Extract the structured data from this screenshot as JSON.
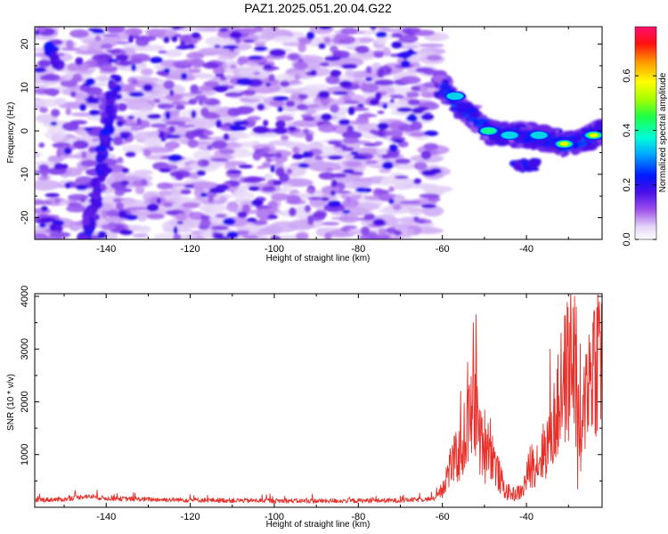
{
  "title": "PAZ1.2025.051.20.04.G22",
  "chart_data": [
    {
      "type": "heatmap",
      "xlabel": "Height of straight line (km)",
      "ylabel": "Frequency (Hz)",
      "xlim": [
        -157,
        -22
      ],
      "ylim": [
        -25,
        24
      ],
      "x_ticks": [
        -140,
        -120,
        -100,
        -80,
        -60,
        -40
      ],
      "y_ticks": [
        -20,
        -10,
        0,
        10,
        20
      ],
      "colorbar": {
        "label": "Normalized spectral amplitude",
        "range": [
          0,
          0.78
        ],
        "ticks": [
          0.0,
          0.2,
          0.4,
          0.6
        ],
        "tick_labels": [
          "0.0",
          "0.2",
          "0.4",
          "0.6"
        ]
      },
      "noise_region_x": [
        -157,
        -61
      ],
      "signal_track": [
        {
          "x": -61,
          "f": 11
        },
        {
          "x": -58,
          "f": 8
        },
        {
          "x": -55,
          "f": 5
        },
        {
          "x": -52,
          "f": 3
        },
        {
          "x": -49,
          "f": 0
        },
        {
          "x": -45,
          "f": -1
        },
        {
          "x": -40,
          "f": -1
        },
        {
          "x": -35,
          "f": -2
        },
        {
          "x": -31,
          "f": -3
        },
        {
          "x": -27,
          "f": -2
        },
        {
          "x": -24,
          "f": -1
        },
        {
          "x": -22,
          "f": 0
        }
      ],
      "peaks": [
        {
          "x": -57,
          "f": 8,
          "amp": 0.5
        },
        {
          "x": -49,
          "f": 0,
          "amp": 0.55
        },
        {
          "x": -44,
          "f": -1,
          "amp": 0.5
        },
        {
          "x": -37,
          "f": -1,
          "amp": 0.5
        },
        {
          "x": -31,
          "f": -3,
          "amp": 0.72
        },
        {
          "x": -24,
          "f": -1,
          "amp": 0.7
        }
      ]
    },
    {
      "type": "line",
      "xlabel": "Height of straight line (km)",
      "ylabel": "SNR (10 * v/v)",
      "xlim": [
        -157,
        -22
      ],
      "ylim": [
        0,
        4050
      ],
      "x_ticks": [
        -140,
        -120,
        -100,
        -80,
        -60,
        -40
      ],
      "y_ticks": [
        1000,
        2000,
        3000,
        4000
      ],
      "color": "#e8302a",
      "anchors": [
        [
          -157,
          140
        ],
        [
          -150,
          150
        ],
        [
          -145,
          210
        ],
        [
          -140,
          170
        ],
        [
          -130,
          150
        ],
        [
          -110,
          130
        ],
        [
          -90,
          120
        ],
        [
          -70,
          130
        ],
        [
          -62,
          160
        ],
        [
          -60,
          380
        ],
        [
          -58,
          800
        ],
        [
          -56,
          1000
        ],
        [
          -54,
          1500
        ],
        [
          -52,
          2000
        ],
        [
          -51,
          1200
        ],
        [
          -49,
          1300
        ],
        [
          -47,
          700
        ],
        [
          -45,
          300
        ],
        [
          -43,
          250
        ],
        [
          -41,
          300
        ],
        [
          -39,
          800
        ],
        [
          -37,
          900
        ],
        [
          -35,
          1200
        ],
        [
          -33,
          1700
        ],
        [
          -31,
          2400
        ],
        [
          -29,
          2900
        ],
        [
          -28,
          1900
        ],
        [
          -27,
          900
        ],
        [
          -26,
          2200
        ],
        [
          -24,
          2800
        ],
        [
          -22,
          3000
        ]
      ],
      "spikes": [
        [
          -55.6,
          2200
        ],
        [
          -54,
          2750
        ],
        [
          -52.6,
          3500
        ],
        [
          -52,
          3650
        ],
        [
          -34.4,
          3000
        ],
        [
          -31.8,
          3300
        ],
        [
          -29.8,
          3500
        ],
        [
          -28.5,
          4000
        ],
        [
          -28.1,
          3800
        ],
        [
          -27.2,
          3100
        ],
        [
          -25.6,
          2900
        ],
        [
          -24,
          3700
        ],
        [
          -22.6,
          3900
        ]
      ],
      "dips": [
        [
          -27.8,
          350
        ],
        [
          -49.8,
          450
        ]
      ]
    }
  ]
}
